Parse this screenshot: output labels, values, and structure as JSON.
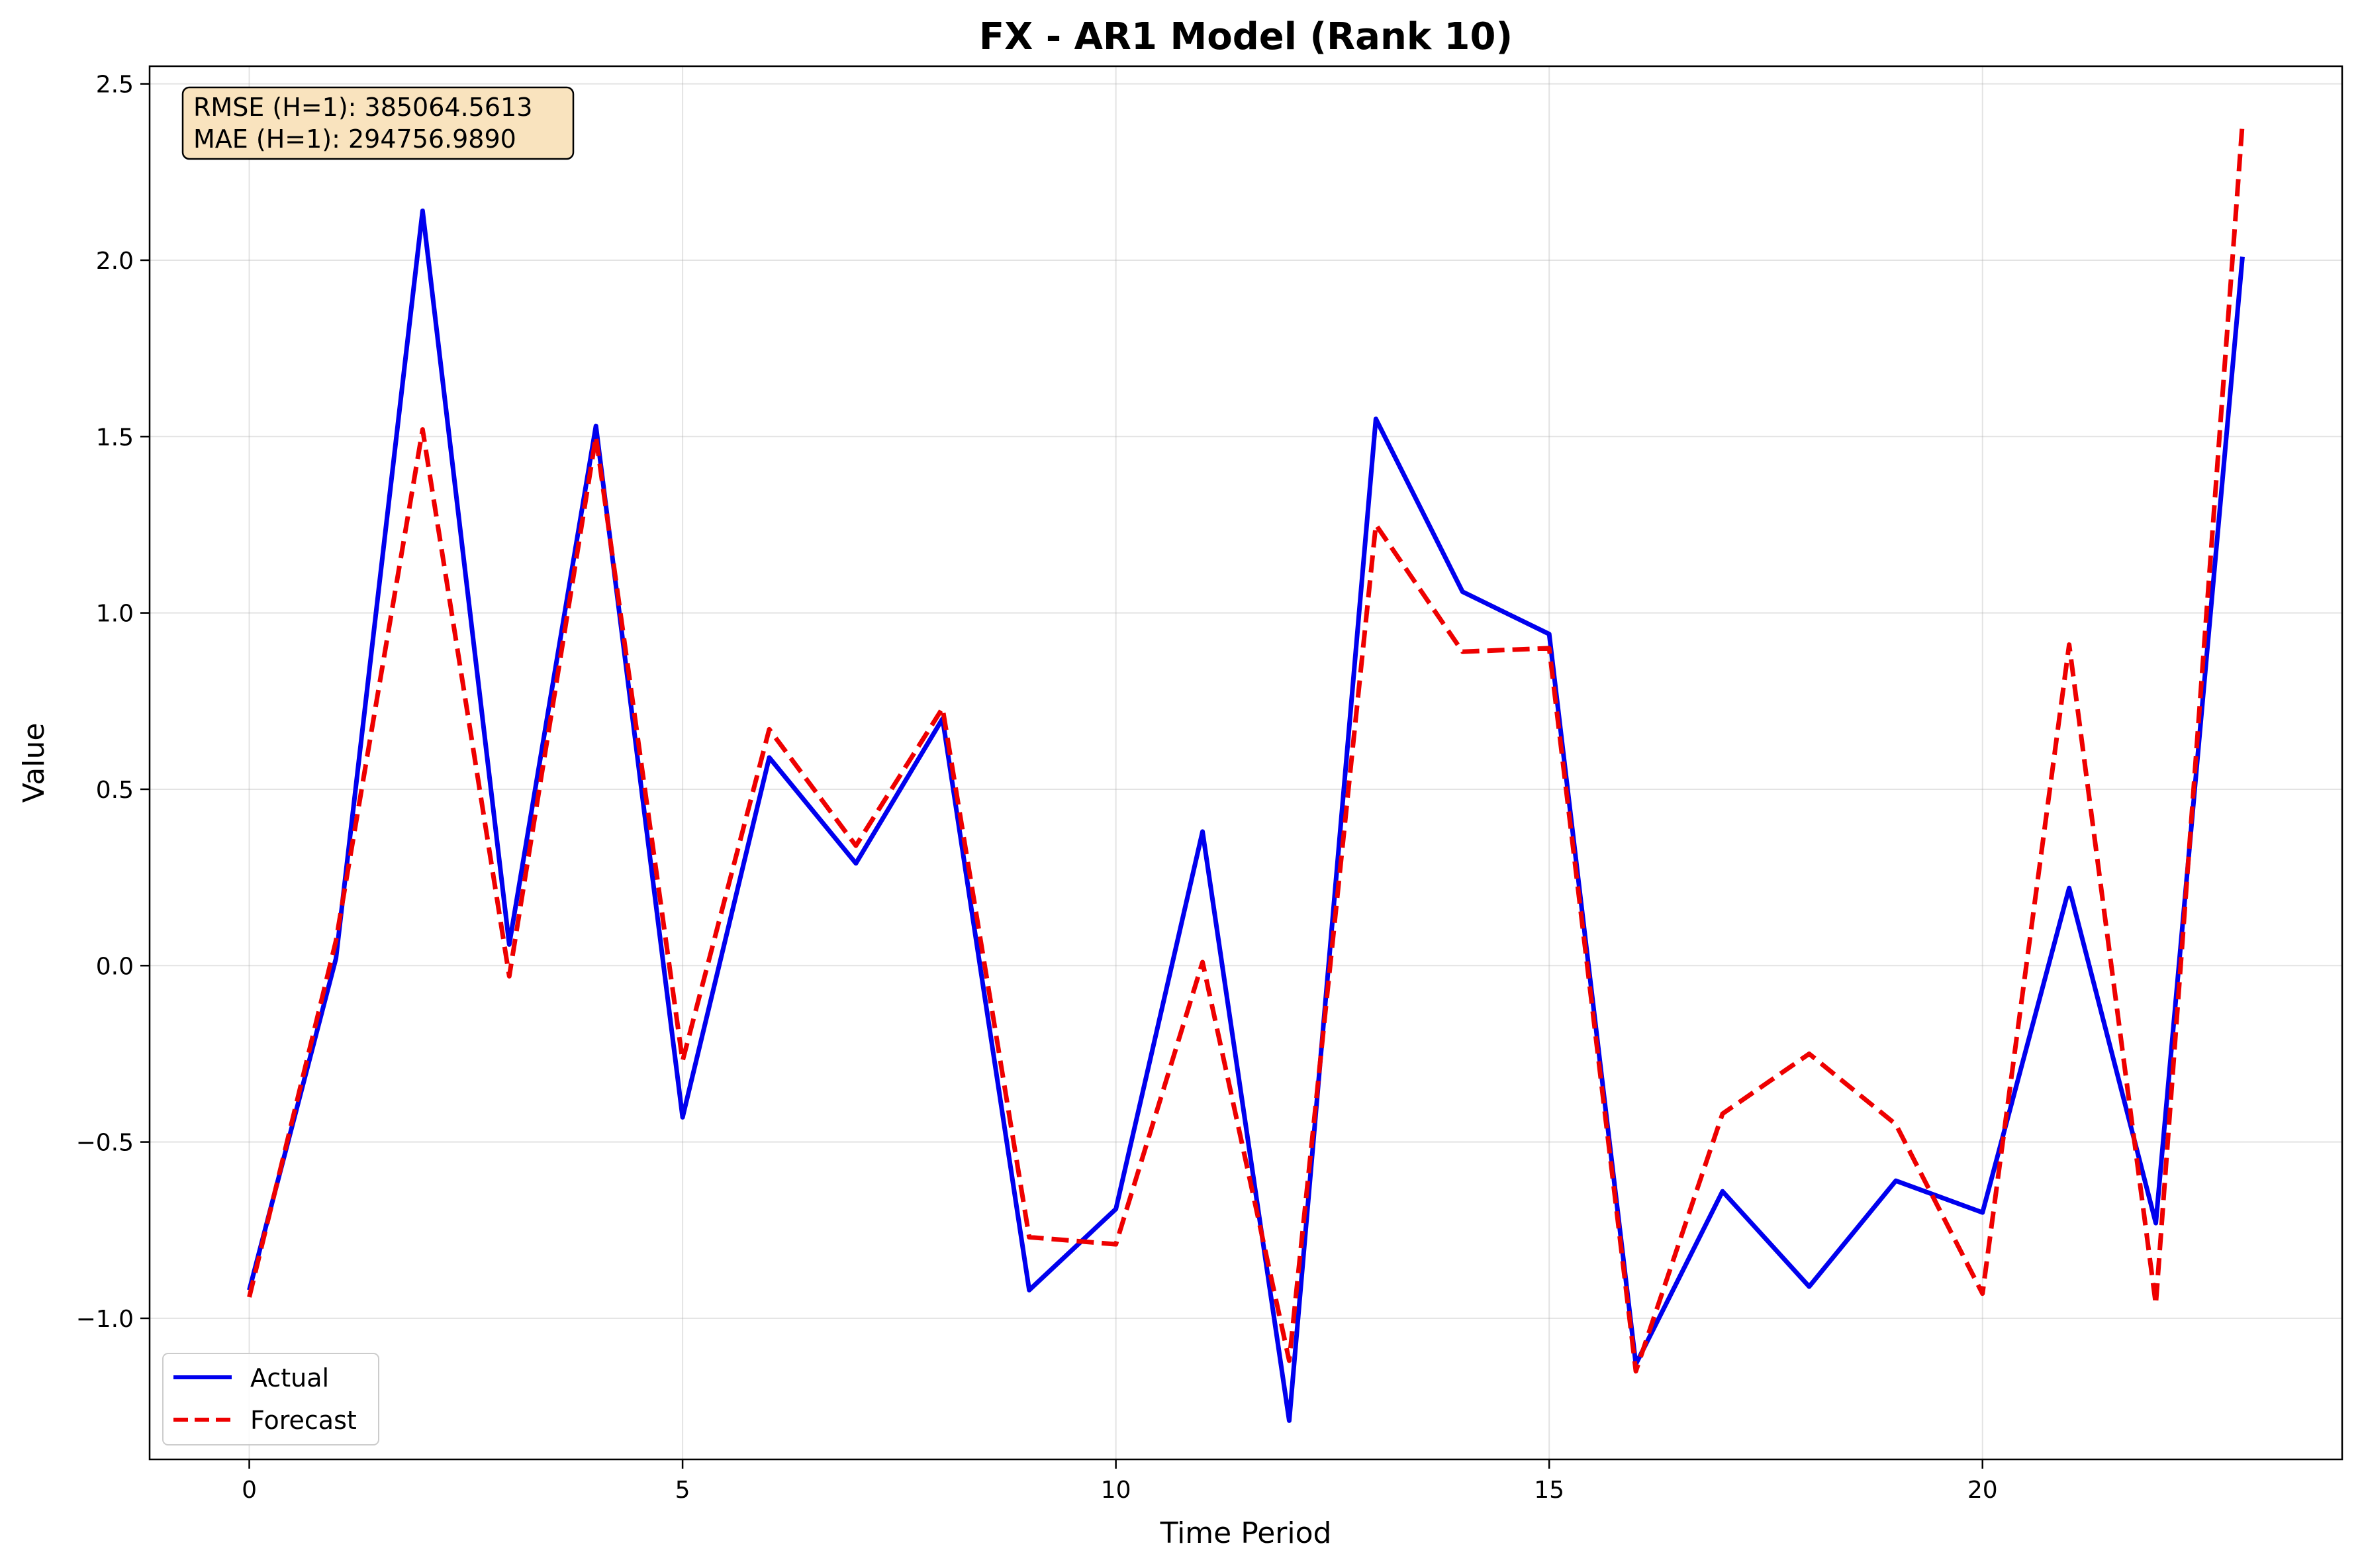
{
  "chart_data": {
    "type": "line",
    "title": "FX - AR1 Model (Rank 10)",
    "xlabel": "Time Period",
    "ylabel": "Value",
    "xlim": [
      -1.15,
      24.15
    ],
    "ylim": [
      -1.4,
      2.55
    ],
    "xticks": [
      0,
      5,
      10,
      15,
      20
    ],
    "xtick_labels": [
      "0",
      "5",
      "10",
      "15",
      "20"
    ],
    "yticks": [
      -1.0,
      -0.5,
      0.0,
      0.5,
      1.0,
      1.5,
      2.0,
      2.5
    ],
    "ytick_labels": [
      "−1.0",
      "−0.5",
      "0.0",
      "0.5",
      "1.0",
      "1.5",
      "2.0",
      "2.5"
    ],
    "grid": true,
    "legend_position": "lower-left",
    "x": [
      0,
      1,
      2,
      3,
      4,
      5,
      6,
      7,
      8,
      9,
      10,
      11,
      12,
      13,
      14,
      15,
      16,
      17,
      18,
      19,
      20,
      21,
      22,
      23
    ],
    "series": [
      {
        "name": "Actual",
        "color": "#0000ee",
        "style": "solid",
        "values": [
          -0.92,
          0.02,
          2.14,
          0.06,
          1.53,
          -0.43,
          0.59,
          0.29,
          0.7,
          -0.92,
          -0.69,
          0.38,
          -1.29,
          1.55,
          1.06,
          0.94,
          -1.13,
          -0.64,
          -0.91,
          -0.61,
          -0.7,
          0.22,
          -0.73,
          2.01
        ]
      },
      {
        "name": "Forecast",
        "color": "#ee0000",
        "style": "dashed",
        "values": [
          -0.94,
          0.07,
          1.52,
          -0.03,
          1.5,
          -0.27,
          0.67,
          0.34,
          0.73,
          -0.77,
          -0.79,
          0.01,
          -1.12,
          1.25,
          0.89,
          0.9,
          -1.15,
          -0.42,
          -0.25,
          -0.45,
          -0.93,
          0.91,
          -0.96,
          2.39
        ]
      }
    ],
    "annotation": {
      "lines": [
        "RMSE (H=1): 385064.5613",
        "MAE (H=1): 294756.9890"
      ],
      "background": "#f9e3be"
    }
  }
}
